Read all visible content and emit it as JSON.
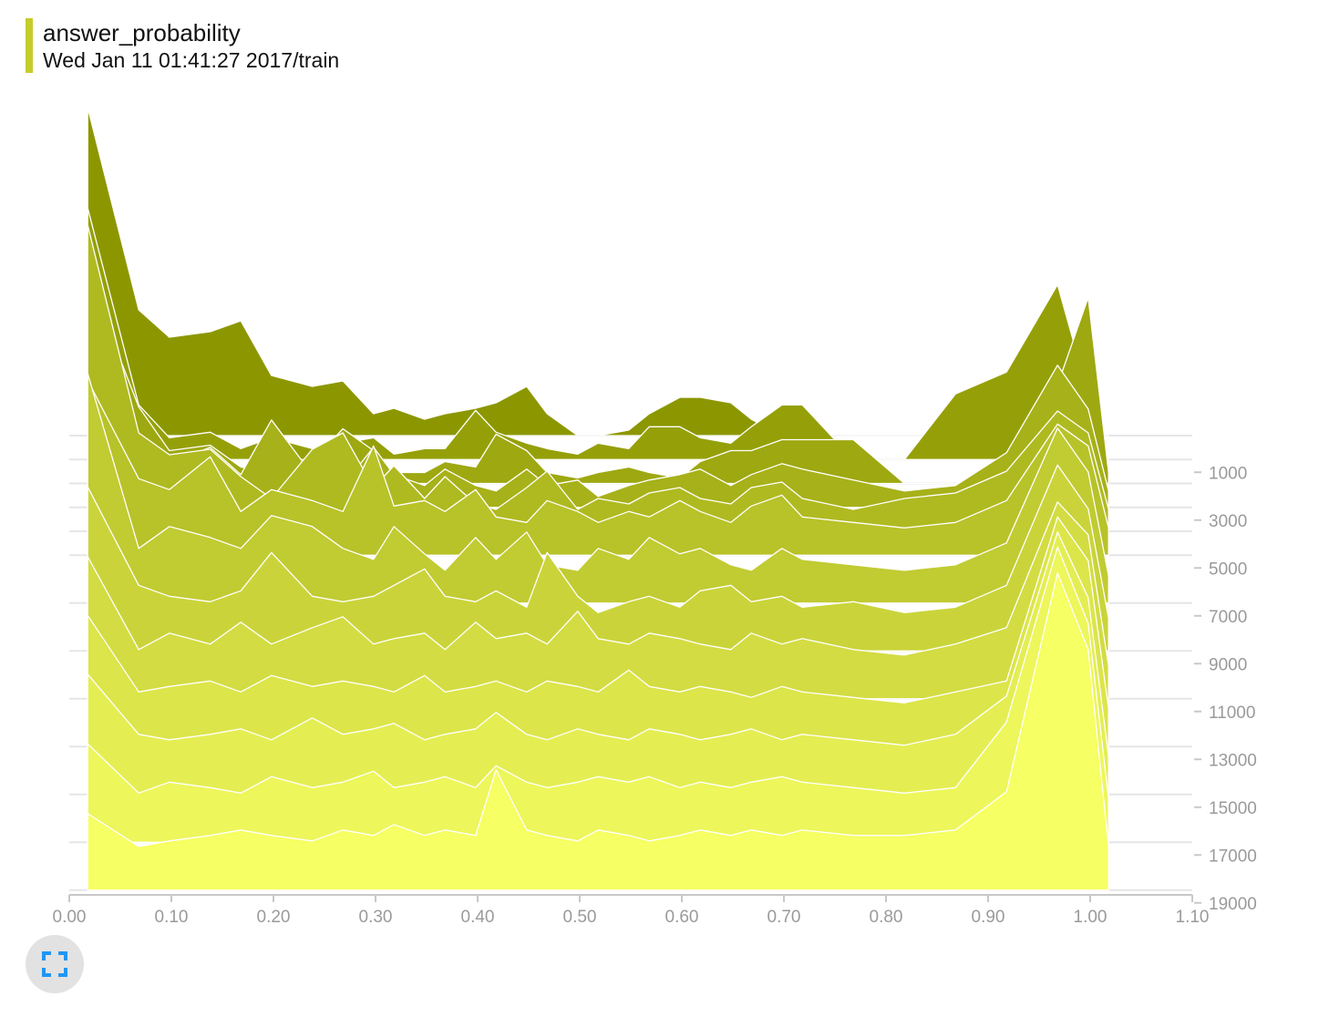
{
  "card": {
    "title": "answer_probability",
    "run": "Wed Jan 11 01:41:27 2017/train"
  },
  "expand_button": {
    "icon": "fullscreen-icon",
    "color": "#2196f3"
  },
  "chart_data": {
    "type": "area",
    "style": "ridgeline-histogram",
    "x_axis": {
      "range": [
        0,
        1.1
      ],
      "ticks": [
        "0.00",
        "0.10",
        "0.20",
        "0.30",
        "0.40",
        "0.50",
        "0.60",
        "0.70",
        "0.80",
        "0.90",
        "1.00",
        "1.10"
      ]
    },
    "y_axis": {
      "label_position": "right",
      "ticks": [
        "1000",
        "3000",
        "5000",
        "7000",
        "9000",
        "11000",
        "13000",
        "15000",
        "17000",
        "19000"
      ]
    },
    "colors": {
      "oldest": "#8c9700",
      "newest": "#f6ff63",
      "outline": "#ffffff"
    },
    "bins": [
      0.0,
      0.05,
      0.08,
      0.12,
      0.15,
      0.18,
      0.22,
      0.25,
      0.28,
      0.3,
      0.33,
      0.35,
      0.38,
      0.4,
      0.43,
      0.45,
      0.48,
      0.5,
      0.53,
      0.55,
      0.58,
      0.6,
      0.63,
      0.65,
      0.68,
      0.7,
      0.75,
      0.8,
      0.85,
      0.9,
      0.95,
      0.98,
      1.0
    ],
    "series": [
      {
        "step": 0,
        "values": [
          3.0,
          1.15,
          0.9,
          0.95,
          1.05,
          0.55,
          0.45,
          0.5,
          0.2,
          0.25,
          0.15,
          0.2,
          0.25,
          0.3,
          0.45,
          0.2,
          0.0,
          0.0,
          0.05,
          0.2,
          0.35,
          0.35,
          0.3,
          0.15,
          0.0,
          0.0,
          0.0,
          0.0,
          0.0,
          0.0,
          0.0,
          0.0,
          0.0
        ]
      },
      {
        "step": 1000,
        "values": [
          2.3,
          0.5,
          0.2,
          0.25,
          0.1,
          0.2,
          0.1,
          0.15,
          0.2,
          0.05,
          0.1,
          0.1,
          0.45,
          0.25,
          0.15,
          0.1,
          0.05,
          0.15,
          0.1,
          0.3,
          0.3,
          0.2,
          0.15,
          0.3,
          0.5,
          0.5,
          0.0,
          0.0,
          0.6,
          0.8,
          1.6,
          0.6,
          0.0
        ]
      },
      {
        "step": 2000,
        "values": [
          1.9,
          0.7,
          0.3,
          0.35,
          0.15,
          0.1,
          0.2,
          0.5,
          0.3,
          0.1,
          0.1,
          0.2,
          0.15,
          0.45,
          0.3,
          0.1,
          0.05,
          0.1,
          0.15,
          0.1,
          0.05,
          0.2,
          0.3,
          0.3,
          0.4,
          0.4,
          0.4,
          0.0,
          0.0,
          0.1,
          0.9,
          1.7,
          0.1
        ]
      },
      {
        "step": 3000,
        "values": [
          2.2,
          0.6,
          0.4,
          0.55,
          0.3,
          0.8,
          0.3,
          0.2,
          0.55,
          0.3,
          0.2,
          0.35,
          0.2,
          0.15,
          0.35,
          0.2,
          0.25,
          0.1,
          0.2,
          0.25,
          0.3,
          0.35,
          0.2,
          0.3,
          0.4,
          0.35,
          0.25,
          0.15,
          0.2,
          0.5,
          1.3,
          0.9,
          0.15
        ]
      },
      {
        "step": 4000,
        "values": [
          2.8,
          0.9,
          0.7,
          0.75,
          0.5,
          0.3,
          0.75,
          0.9,
          0.4,
          0.6,
          0.3,
          0.5,
          0.25,
          0.2,
          0.4,
          0.55,
          0.2,
          0.3,
          0.25,
          0.35,
          0.4,
          0.3,
          0.25,
          0.4,
          0.45,
          0.3,
          0.2,
          0.3,
          0.35,
          0.55,
          1.1,
          0.9,
          0.2
        ]
      },
      {
        "step": 5000,
        "values": [
          1.6,
          0.7,
          0.6,
          0.9,
          0.4,
          0.6,
          0.5,
          0.4,
          1.0,
          0.45,
          0.5,
          0.4,
          0.6,
          0.35,
          0.3,
          0.5,
          0.4,
          0.3,
          0.4,
          0.35,
          0.5,
          0.4,
          0.3,
          0.45,
          0.55,
          0.35,
          0.3,
          0.25,
          0.3,
          0.5,
          1.2,
          1.0,
          0.25
        ]
      },
      {
        "step": 7000,
        "values": [
          2.1,
          0.5,
          0.7,
          0.6,
          0.5,
          0.8,
          0.7,
          0.5,
          0.4,
          0.7,
          0.45,
          0.3,
          0.6,
          0.4,
          0.65,
          0.35,
          0.3,
          0.5,
          0.4,
          0.6,
          0.45,
          0.5,
          0.35,
          0.3,
          0.5,
          0.4,
          0.35,
          0.3,
          0.35,
          0.55,
          1.6,
          1.2,
          0.25
        ]
      },
      {
        "step": 9000,
        "values": [
          1.5,
          0.6,
          0.5,
          0.45,
          0.55,
          0.9,
          0.5,
          0.45,
          0.5,
          0.6,
          0.75,
          0.5,
          0.45,
          0.55,
          0.4,
          0.9,
          0.5,
          0.35,
          0.45,
          0.5,
          0.4,
          0.55,
          0.6,
          0.45,
          0.5,
          0.4,
          0.45,
          0.35,
          0.4,
          0.6,
          1.7,
          1.3,
          0.3
        ]
      },
      {
        "step": 11000,
        "values": [
          1.3,
          0.45,
          0.6,
          0.5,
          0.7,
          0.5,
          0.65,
          0.75,
          0.5,
          0.55,
          0.6,
          0.45,
          0.7,
          0.55,
          0.6,
          0.5,
          0.8,
          0.55,
          0.5,
          0.6,
          0.55,
          0.5,
          0.45,
          0.6,
          0.5,
          0.55,
          0.45,
          0.4,
          0.5,
          0.65,
          1.8,
          1.5,
          0.3
        ]
      },
      {
        "step": 13000,
        "values": [
          1.2,
          0.5,
          0.55,
          0.6,
          0.5,
          0.65,
          0.55,
          0.6,
          0.55,
          0.5,
          0.65,
          0.5,
          0.55,
          0.6,
          0.5,
          0.6,
          0.55,
          0.5,
          0.7,
          0.55,
          0.5,
          0.55,
          0.5,
          0.45,
          0.55,
          0.5,
          0.45,
          0.4,
          0.5,
          0.6,
          2.1,
          1.7,
          0.35
        ]
      },
      {
        "step": 15000,
        "values": [
          1.1,
          0.55,
          0.5,
          0.55,
          0.6,
          0.5,
          0.7,
          0.55,
          0.6,
          0.65,
          0.5,
          0.55,
          0.6,
          0.75,
          0.55,
          0.5,
          0.6,
          0.55,
          0.5,
          0.6,
          0.55,
          0.5,
          0.55,
          0.6,
          0.5,
          0.55,
          0.5,
          0.45,
          0.55,
          0.9,
          2.4,
          1.8,
          0.35
        ]
      },
      {
        "step": 17000,
        "values": [
          0.9,
          0.45,
          0.55,
          0.5,
          0.45,
          0.6,
          0.5,
          0.55,
          0.65,
          0.5,
          0.55,
          0.6,
          0.5,
          0.7,
          0.55,
          0.5,
          0.55,
          0.6,
          0.55,
          0.6,
          0.5,
          0.55,
          0.5,
          0.55,
          0.6,
          0.55,
          0.5,
          0.45,
          0.5,
          1.1,
          2.7,
          2.0,
          0.4
        ]
      },
      {
        "step": 19000,
        "values": [
          0.7,
          0.4,
          0.45,
          0.5,
          0.55,
          0.5,
          0.45,
          0.55,
          0.5,
          0.6,
          0.5,
          0.55,
          0.5,
          1.1,
          0.55,
          0.5,
          0.45,
          0.55,
          0.5,
          0.45,
          0.5,
          0.55,
          0.5,
          0.55,
          0.5,
          0.55,
          0.5,
          0.5,
          0.55,
          0.9,
          2.9,
          2.2,
          0.4
        ]
      }
    ]
  }
}
